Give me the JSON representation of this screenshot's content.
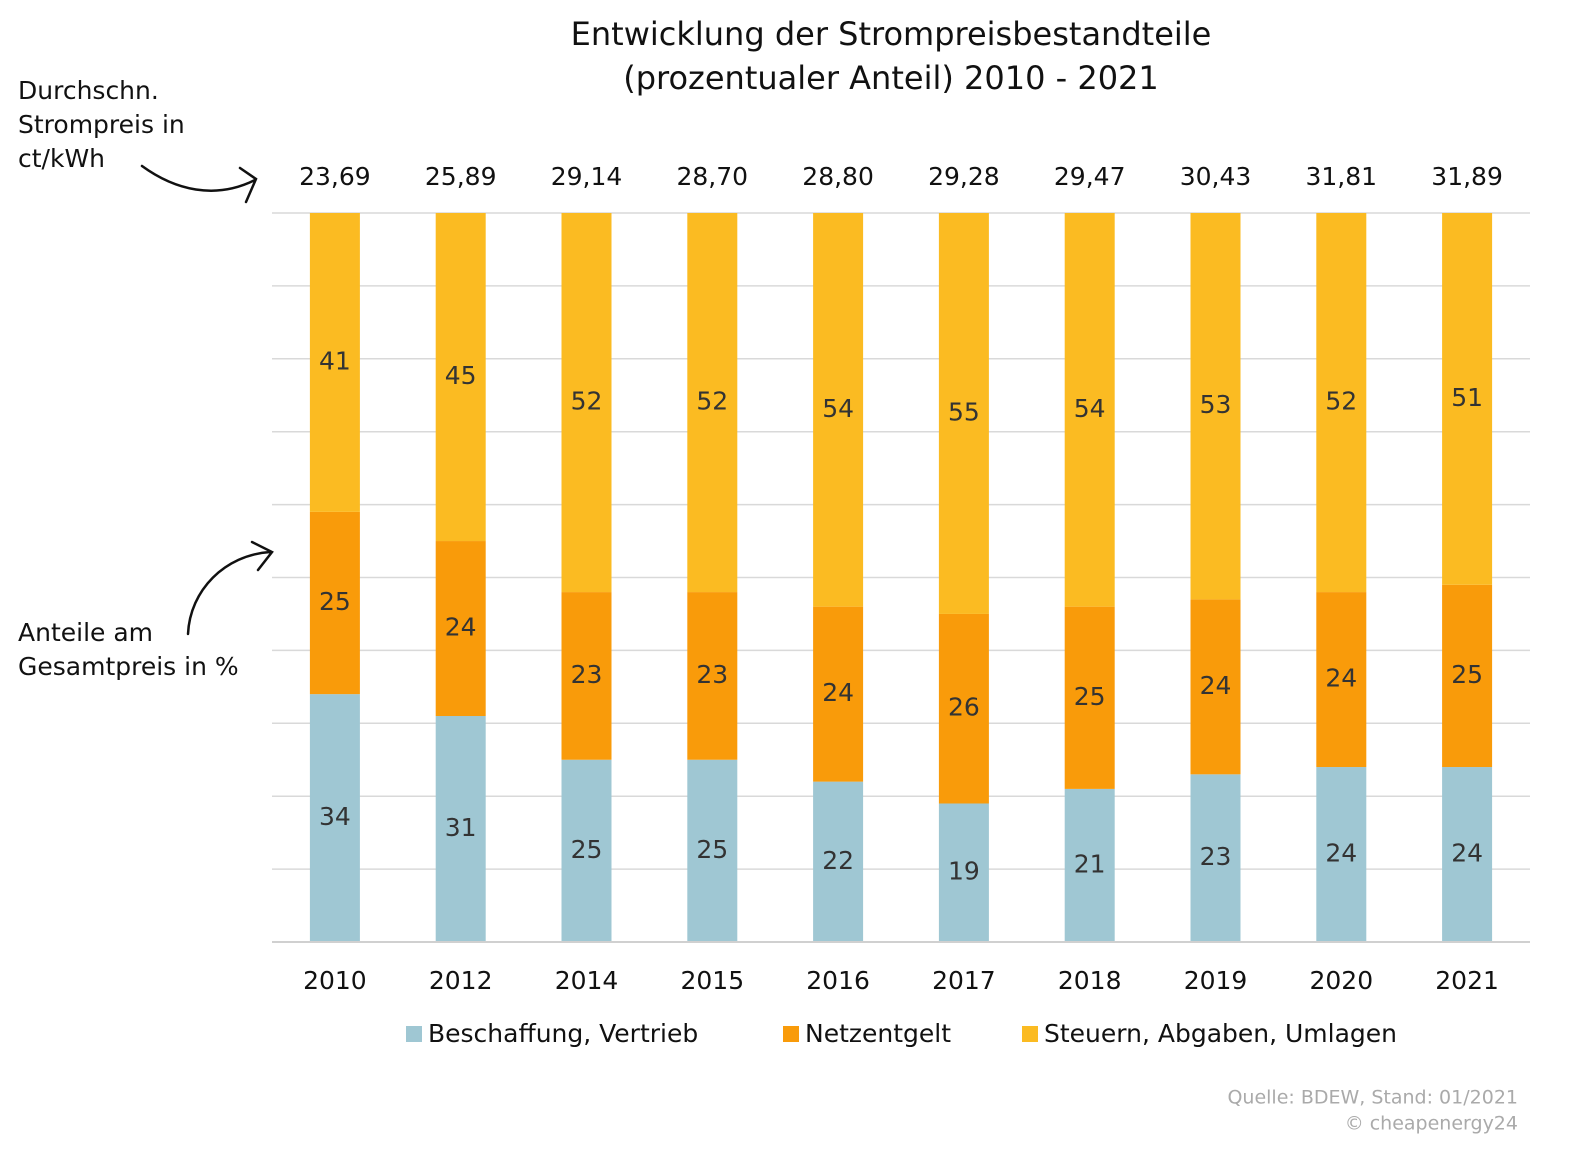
{
  "chart_data": {
    "type": "stacked_bar",
    "title": [
      "Entwicklung der Strompreisbestandteile",
      "(prozentualer Anteil) 2010 - 2021"
    ],
    "annotations": {
      "price": [
        "Durchschn.",
        "Strompreis in",
        "ct/kWh"
      ],
      "share": [
        "Anteile am",
        "Gesamtpreis in %"
      ]
    },
    "categories": [
      "2010",
      "2012",
      "2014",
      "2015",
      "2016",
      "2017",
      "2018",
      "2019",
      "2020",
      "2021"
    ],
    "series": [
      {
        "name": "Beschaffung, Vertrieb",
        "color": "#9fc7d3",
        "values": [
          34,
          31,
          25,
          25,
          22,
          19,
          21,
          23,
          24,
          24
        ]
      },
      {
        "name": "Netzentgelt",
        "color": "#f99b0a",
        "values": [
          25,
          24,
          23,
          23,
          24,
          26,
          25,
          24,
          24,
          25
        ]
      },
      {
        "name": "Steuern, Abgaben, Umlagen",
        "color": "#fbbb22",
        "values": [
          41,
          45,
          52,
          52,
          54,
          55,
          54,
          53,
          52,
          51
        ]
      }
    ],
    "prices": {
      "values": [
        23.69,
        25.89,
        29.14,
        28.7,
        28.8,
        29.28,
        29.47,
        30.43,
        31.81,
        31.89
      ],
      "value_labels": [
        "23,69",
        "25,89",
        "29,14",
        "28,70",
        "28,80",
        "29,28",
        "29,47",
        "30,43",
        "31,81",
        "31,89"
      ]
    },
    "ylim": [
      0,
      100
    ],
    "yticks": [
      0,
      10,
      20,
      30,
      40,
      50,
      60,
      70,
      80,
      90,
      100
    ],
    "grid": true,
    "source": [
      "Quelle: BDEW, Stand: 01/2021",
      "© cheapenergy24"
    ]
  }
}
